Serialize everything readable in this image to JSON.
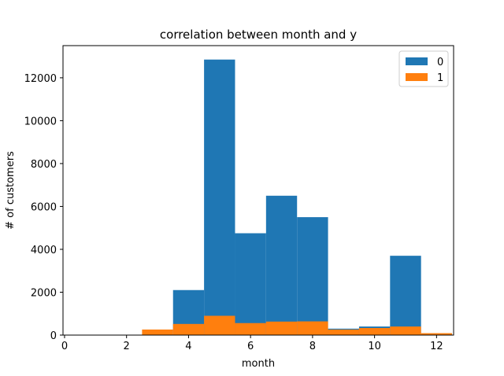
{
  "chart_data": {
    "type": "bar",
    "title": "correlation between month and y",
    "xlabel": "month",
    "ylabel": "# of customers",
    "xlim": [
      -0.05,
      12.55
    ],
    "ylim": [
      0,
      13500
    ],
    "xticks": [
      0,
      2,
      4,
      6,
      8,
      10,
      12
    ],
    "yticks": [
      0,
      2000,
      4000,
      6000,
      8000,
      10000,
      12000
    ],
    "bar_width": 1,
    "grid": false,
    "legend_position": "top-right",
    "x": [
      3,
      4,
      5,
      6,
      7,
      8,
      9,
      10,
      11,
      12
    ],
    "series": [
      {
        "name": "0",
        "color": "#1f77b4",
        "values": [
          0,
          2100,
          12850,
          4750,
          6500,
          5500,
          300,
          400,
          3700,
          0
        ]
      },
      {
        "name": "1",
        "color": "#ff7f0e",
        "values": [
          260,
          520,
          900,
          560,
          630,
          640,
          260,
          330,
          400,
          90
        ]
      }
    ]
  }
}
